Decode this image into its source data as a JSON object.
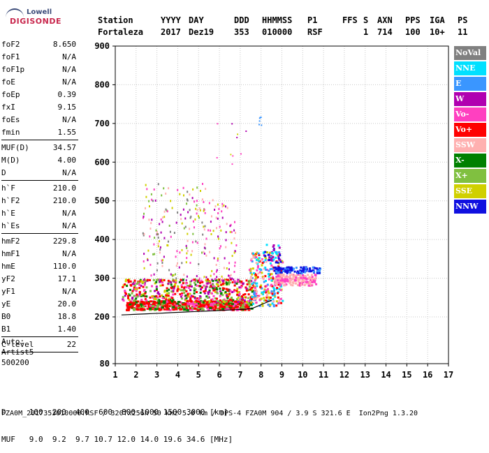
{
  "logo": {
    "line1": "Lowell",
    "line2": "DIGISONDE"
  },
  "header": {
    "labels": [
      "Station",
      "YYYY",
      "DAY",
      "DDD",
      "HHMMSS",
      "P1",
      "FFS",
      "S",
      "AXN",
      "PPS",
      "IGA",
      "PS"
    ],
    "values": [
      "Fortaleza",
      "2017",
      "Dez19",
      "353",
      "010000",
      "RSF",
      "",
      "1",
      "714",
      "100",
      "10+",
      "11"
    ]
  },
  "params": [
    {
      "key": "foF2",
      "value": "8.650"
    },
    {
      "key": "foF1",
      "value": "N/A"
    },
    {
      "key": "foF1p",
      "value": "N/A"
    },
    {
      "key": "foE",
      "value": "N/A"
    },
    {
      "key": "foEp",
      "value": "0.39"
    },
    {
      "key": "fxI",
      "value": "9.15"
    },
    {
      "key": "foEs",
      "value": "N/A"
    },
    {
      "key": "fmin",
      "value": "1.55",
      "sep": true
    },
    {
      "key": "MUF(D)",
      "value": "34.57"
    },
    {
      "key": "M(D)",
      "value": "4.00"
    },
    {
      "key": "D",
      "value": "N/A",
      "sep": true
    },
    {
      "key": "h`F",
      "value": "210.0"
    },
    {
      "key": "h`F2",
      "value": "210.0"
    },
    {
      "key": "h`E",
      "value": "N/A"
    },
    {
      "key": "h`Es",
      "value": "N/A",
      "sep": true
    },
    {
      "key": "hmF2",
      "value": "229.8"
    },
    {
      "key": "hmF1",
      "value": "N/A"
    },
    {
      "key": "hmE",
      "value": "110.0"
    },
    {
      "key": "yF2",
      "value": "17.1"
    },
    {
      "key": "yF1",
      "value": "N/A"
    },
    {
      "key": "yE",
      "value": "20.0"
    },
    {
      "key": "B0",
      "value": "18.8"
    },
    {
      "key": "B1",
      "value": "1.40",
      "sep": true
    },
    {
      "key": "C-level",
      "value": "22",
      "sep": true
    }
  ],
  "auto": {
    "line1": "Auto:",
    "line2": "Artist5",
    "line3": "500200"
  },
  "legend": [
    {
      "label": "NoVal",
      "color": "#808080"
    },
    {
      "label": "NNE",
      "color": "#00e0ff"
    },
    {
      "label": "E",
      "color": "#3a96ff"
    },
    {
      "label": "W",
      "color": "#b000b0"
    },
    {
      "label": "Vo-",
      "color": "#ff40c0"
    },
    {
      "label": "Vo+",
      "color": "#ff0000"
    },
    {
      "label": "SSW",
      "color": "#ffb0b0"
    },
    {
      "label": "X-",
      "color": "#008000"
    },
    {
      "label": "X+",
      "color": "#80c040"
    },
    {
      "label": "SSE",
      "color": "#d0d000"
    },
    {
      "label": "NNW",
      "color": "#1010e0"
    }
  ],
  "chart_data": {
    "type": "scatter",
    "x_ticks": [
      "1",
      "2",
      "3",
      "4",
      "5",
      "6",
      "7",
      "8",
      "9",
      "10",
      "11",
      "12",
      "13",
      "14",
      "15",
      "16",
      "17"
    ],
    "y_ticks": [
      "80",
      "200",
      "300",
      "400",
      "500",
      "600",
      "700",
      "800",
      "900"
    ],
    "xlim": [
      1,
      17
    ],
    "ylim": [
      80,
      900
    ],
    "grid": true
  },
  "footer": {
    "line1": "D     100  200  400  600  800 1000 1500 3000 [km]",
    "line2": "MUF   9.0  9.2  9.7 10.7 12.0 14.0 19.6 34.6 [MHz]",
    "line3": "FZA0M_2017353010000.RSF / 320fx256h 50 kHz 5.0 km / DPS-4 FZA0M 904 / 3.9 S 321.6 E  Ion2Png 1.3.20"
  }
}
